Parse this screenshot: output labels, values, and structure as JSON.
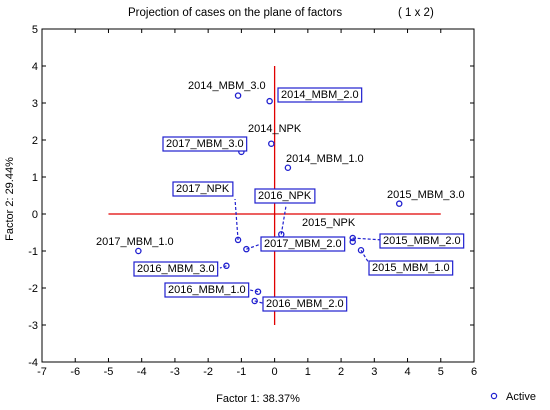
{
  "chart_data": {
    "type": "scatter",
    "title": "Projection of cases on the plane of factors",
    "title_suffix": "( 1 x   2)",
    "xlabel": "Factor 1: 38.37%",
    "ylabel": "Factor 2: 29.44%",
    "xlim": [
      -7,
      6
    ],
    "ylim": [
      -4,
      5
    ],
    "xticks": [
      "-7",
      "-6",
      "-5",
      "-4",
      "-3",
      "-2",
      "-1",
      "0",
      "1",
      "2",
      "3",
      "4",
      "5",
      "6"
    ],
    "yticks": [
      "-4",
      "-3",
      "-2",
      "-1",
      "0",
      "1",
      "2",
      "3",
      "4",
      "5"
    ],
    "legend": {
      "label": "Active",
      "placement": "bottom-right"
    },
    "reference_lines": {
      "x_from": -5,
      "x_to": 5,
      "y_from": -3,
      "y_to": 4
    },
    "points": [
      {
        "name": "2014_MBM_3.0",
        "x": -1.1,
        "y": 3.2,
        "boxed": false
      },
      {
        "name": "2014_MBM_2.0",
        "x": -0.15,
        "y": 3.05,
        "boxed": true
      },
      {
        "name": "2014_NPK",
        "x": -0.1,
        "y": 1.9,
        "boxed": false
      },
      {
        "name": "2017_MBM_3.0",
        "x": -1.0,
        "y": 1.68,
        "boxed": true
      },
      {
        "name": "2014_MBM_1.0",
        "x": 0.4,
        "y": 1.25,
        "boxed": false
      },
      {
        "name": "2015_MBM_3.0",
        "x": 3.75,
        "y": 0.28,
        "boxed": false
      },
      {
        "name": "2017_NPK",
        "x": -1.1,
        "y": -0.7,
        "boxed": true
      },
      {
        "name": "2016_NPK",
        "x": 0.2,
        "y": -0.55,
        "boxed": true
      },
      {
        "name": "2015_NPK",
        "x": 2.35,
        "y": -0.75,
        "boxed": false
      },
      {
        "name": "2015_MBM_2.0",
        "x": 2.35,
        "y": -0.65,
        "boxed": true
      },
      {
        "name": "2015_MBM_1.0",
        "x": 2.6,
        "y": -0.98,
        "boxed": true
      },
      {
        "name": "2017_MBM_2.0",
        "x": -0.85,
        "y": -0.95,
        "boxed": true
      },
      {
        "name": "2017_MBM_1.0",
        "x": -4.1,
        "y": -1.0,
        "boxed": false
      },
      {
        "name": "2016_MBM_3.0",
        "x": -1.45,
        "y": -1.4,
        "boxed": true
      },
      {
        "name": "2016_MBM_1.0",
        "x": -0.5,
        "y": -2.1,
        "boxed": true
      },
      {
        "name": "2016_MBM_2.0",
        "x": -0.6,
        "y": -2.35,
        "boxed": true
      }
    ],
    "colors": {
      "points": "#1f1fcf",
      "reference": "#e00000",
      "label_box": "#1f1fcf"
    }
  }
}
